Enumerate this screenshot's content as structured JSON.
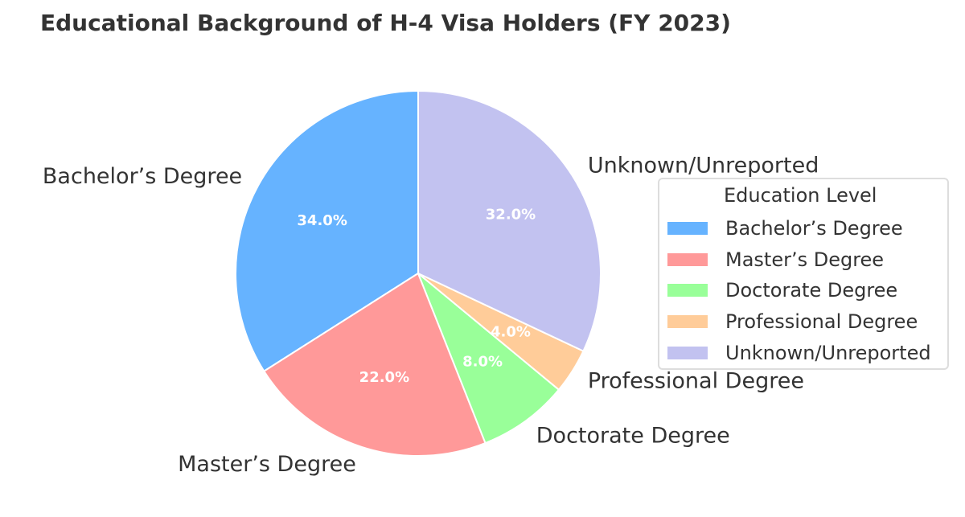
{
  "chart_data": {
    "type": "pie",
    "title": "Educational Background of H-4 Visa Holders (FY 2023)",
    "categories": [
      "Bachelor’s Degree",
      "Master’s Degree",
      "Doctorate Degree",
      "Professional Degree",
      "Unknown/Unreported"
    ],
    "values": [
      34.0,
      22.0,
      8.0,
      4.0,
      32.0
    ],
    "value_labels": [
      "34.0%",
      "22.0%",
      "8.0%",
      "4.0%",
      "32.0%"
    ],
    "colors": [
      "#66b3ff",
      "#ff9999",
      "#99ff99",
      "#ffcc99",
      "#c2c2f0"
    ],
    "start_angle": 90,
    "direction": "counterclockwise",
    "legend": {
      "title": "Education Level",
      "placement": "right"
    }
  }
}
